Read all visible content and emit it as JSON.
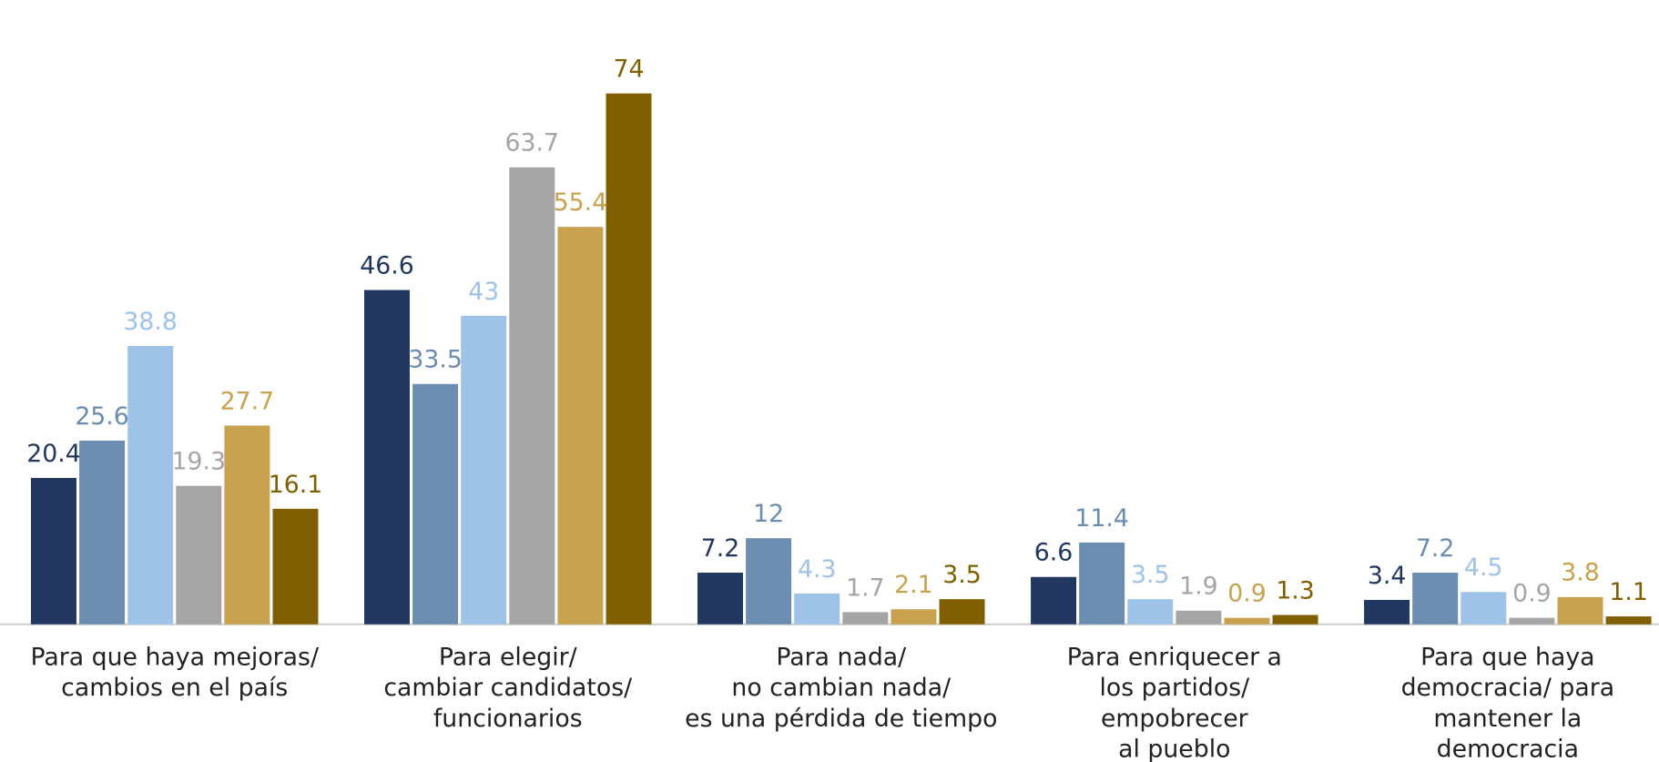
{
  "chart_data": {
    "type": "bar",
    "categories": [
      [
        "Para que haya mejoras/",
        "cambios en el país"
      ],
      [
        "Para elegir/",
        "cambiar candidatos/",
        "funcionarios"
      ],
      [
        "Para nada/",
        "no cambian nada/",
        "es una pérdida de tiempo"
      ],
      [
        "Para enriquecer a",
        "los partidos/",
        "empobrecer",
        "al pueblo"
      ],
      [
        "Para que haya",
        "democracia/ para",
        "mantener la",
        "democracia"
      ]
    ],
    "series": [
      {
        "color": "#22375f",
        "values": [
          20.4,
          46.6,
          7.2,
          6.6,
          3.4
        ]
      },
      {
        "color": "#6a8db0",
        "values": [
          25.6,
          33.5,
          12,
          11.4,
          7.2
        ]
      },
      {
        "color": "#9fc3e7",
        "values": [
          38.8,
          43,
          4.3,
          3.5,
          4.5
        ]
      },
      {
        "color": "#a5a5a5",
        "values": [
          19.3,
          63.7,
          1.7,
          1.9,
          0.9
        ]
      },
      {
        "color": "#c8a24e",
        "values": [
          27.7,
          55.4,
          2.1,
          0.9,
          3.8
        ]
      },
      {
        "color": "#7f5f00",
        "values": [
          16.1,
          74,
          3.5,
          1.3,
          1.1
        ]
      }
    ],
    "ylim": [
      0,
      80
    ]
  }
}
